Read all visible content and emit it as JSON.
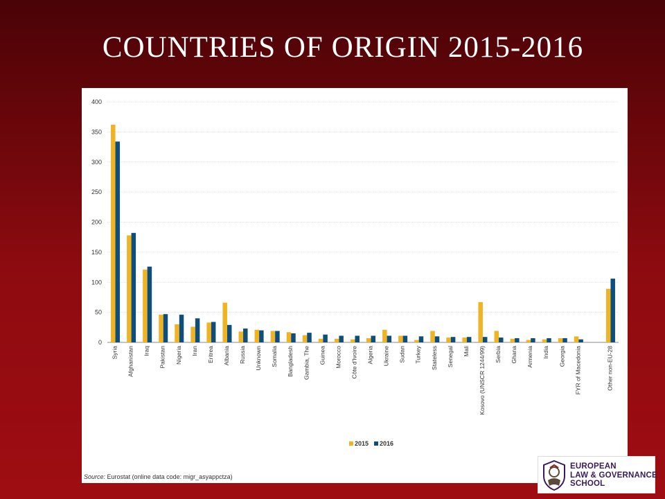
{
  "slide": {
    "title": "COUNTRIES OF ORIGIN 2015-2016",
    "source_label": "Source:",
    "source_text": "Eurostat (online data code: migr_asyappctza)"
  },
  "logo": {
    "line1": "EUROPEAN",
    "line2": "LAW & GOVERNANCE",
    "line3": "SCHOOL"
  },
  "colors": {
    "series_2015": "#f0b323",
    "series_2016": "#0d4f7a",
    "background_top": "#4a0306",
    "background_bottom": "#9e0d12"
  },
  "chart_data": {
    "type": "bar",
    "title": "",
    "xlabel": "",
    "ylabel": "",
    "ylim": [
      0,
      400
    ],
    "yticks": [
      0,
      50,
      100,
      150,
      200,
      250,
      300,
      350,
      400
    ],
    "grid": true,
    "legend_position": "bottom-center",
    "categories": [
      "Syria",
      "Afghanistan",
      "Iraq",
      "Pakistan",
      "Nigeria",
      "Iran",
      "Eritrea",
      "Albania",
      "Russia",
      "Unknown",
      "Somalia",
      "Bangladesh",
      "Gambia, The",
      "Guinea",
      "Morocco",
      "Côte d'Ivoire",
      "Algeria",
      "Ukraine",
      "Sudan",
      "Turkey",
      "Stateless",
      "Senegal",
      "Mali",
      "Kosovo (UNSCR 1244/99)",
      "Serbia",
      "Ghana",
      "Armenia",
      "India",
      "Georgia",
      "FYR of Macedonia",
      "",
      "Other non-EU-28"
    ],
    "series": [
      {
        "name": "2015",
        "values": [
          362,
          178,
          121,
          46,
          30,
          26,
          33,
          66,
          18,
          21,
          19,
          17,
          12,
          6,
          6,
          5,
          7,
          21,
          11,
          4,
          19,
          8,
          8,
          67,
          19,
          6,
          4,
          5,
          7,
          10,
          null,
          89
        ]
      },
      {
        "name": "2016",
        "values": [
          334,
          182,
          126,
          47,
          46,
          40,
          34,
          29,
          23,
          20,
          19,
          15,
          16,
          13,
          11,
          11,
          11,
          11,
          11,
          10,
          10,
          9,
          9,
          9,
          8,
          7,
          7,
          7,
          7,
          5,
          null,
          106
        ]
      }
    ]
  }
}
